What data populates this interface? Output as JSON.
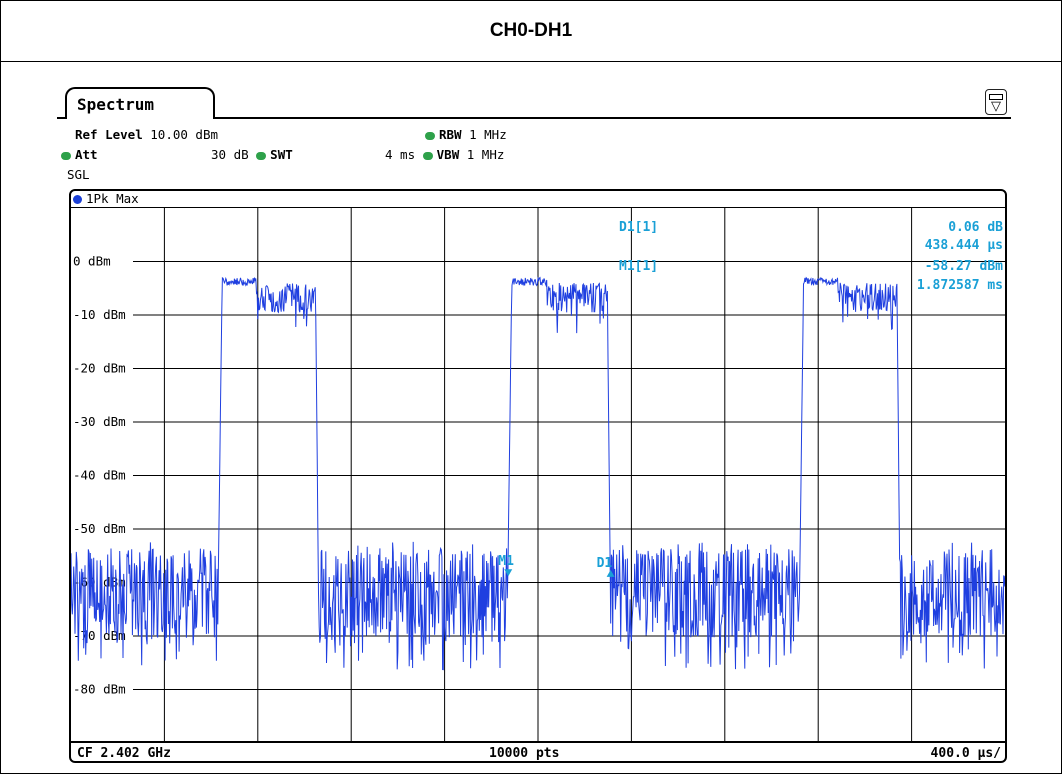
{
  "page_title": "CH0-DH1",
  "tab_label": "Spectrum",
  "params": {
    "ref_level_label": "Ref Level",
    "ref_level_value": "10.00 dBm",
    "att_label": "Att",
    "att_value": "30 dB",
    "swt_label": "SWT",
    "swt_value": "4 ms",
    "rbw_label": "RBW",
    "rbw_value": "1 MHz",
    "vbw_label": "VBW",
    "vbw_value": "1 MHz",
    "mode": "SGL"
  },
  "trace_label": "1Pk Max",
  "marker_readout": {
    "d1_label": "D1[1]",
    "d1_level": "0.06 dB",
    "d1_time": "438.444 µs",
    "m1_label": "M1[1]",
    "m1_level": "-58.27 dBm",
    "m1_time": "1.872587 ms"
  },
  "markers": {
    "m1": "M1",
    "d1": "D1"
  },
  "footer": {
    "center_freq": "CF 2.402 GHz",
    "points": "10000 pts",
    "scale": "400.0 µs/"
  },
  "colors": {
    "trace": "#1f3fe0",
    "marker": "#1aa0d6",
    "led": "#2ea14a"
  },
  "chart_data": {
    "type": "line",
    "x_unit": "ms",
    "xlim": [
      0,
      4
    ],
    "ylim": [
      -90,
      10
    ],
    "y_ticks": [
      "0 dBm",
      "-10 dBm",
      "-20 dBm",
      "-30 dBm",
      "-40 dBm",
      "-50 dBm",
      "-60 dBm",
      "-70 dBm",
      "-80 dBm"
    ],
    "y_tick_values": [
      0,
      -10,
      -20,
      -30,
      -40,
      -50,
      -60,
      -70,
      -80
    ],
    "grid": true,
    "noise_floor_dbm": -62,
    "noise_spread_db": 12,
    "burst_level_dbm": -4,
    "bursts": [
      {
        "start": 0.63,
        "end": 1.06
      },
      {
        "start": 1.87,
        "end": 2.31
      },
      {
        "start": 3.12,
        "end": 3.55
      }
    ],
    "marker_m1": {
      "x": 1.8726,
      "y": -58.27
    },
    "marker_d1": {
      "x": 2.311,
      "y": -58.21
    }
  }
}
